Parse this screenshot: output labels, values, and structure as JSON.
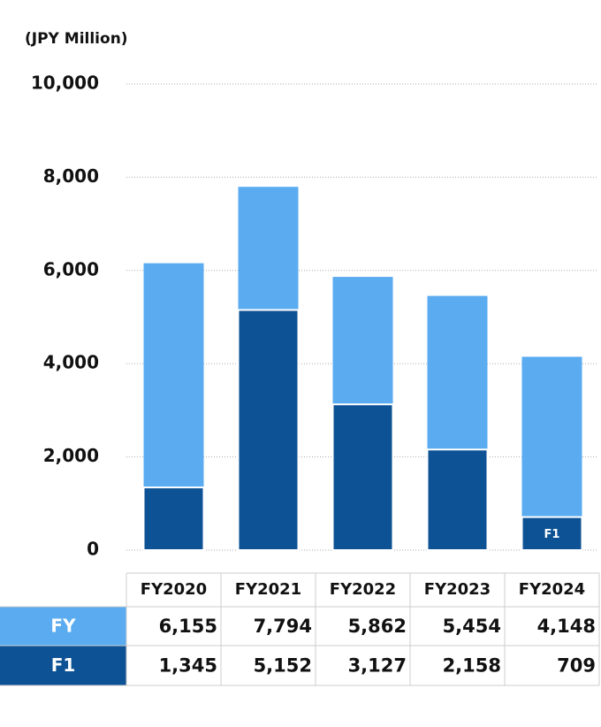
{
  "chart_data": {
    "type": "bar",
    "y_label": "(JPY Million)",
    "categories": [
      "FY2020",
      "FY2021",
      "FY2022",
      "FY2023",
      "FY2024"
    ],
    "series": [
      {
        "name": "FY",
        "color": "#5aabf0",
        "values": [
          6155,
          7794,
          5862,
          5454,
          4148
        ],
        "value_labels": [
          "6,155",
          "7,794",
          "5,862",
          "5,454",
          "4,148"
        ]
      },
      {
        "name": "F1",
        "color": "#0d5294",
        "values": [
          1345,
          5152,
          3127,
          2158,
          709
        ],
        "value_labels": [
          "1,345",
          "5,152",
          "3,127",
          "2,158",
          "709"
        ]
      }
    ],
    "ylim": [
      0,
      10000
    ],
    "yticks": [
      0,
      {
        "value": 2000,
        "label": "2,000"
      },
      {
        "value": 4000,
        "label": "4,000"
      },
      {
        "value": 6000,
        "label": "6,000"
      },
      {
        "value": 8000,
        "label": "8,000"
      },
      {
        "value": 10000,
        "label": "10,000"
      }
    ],
    "grid": true
  }
}
